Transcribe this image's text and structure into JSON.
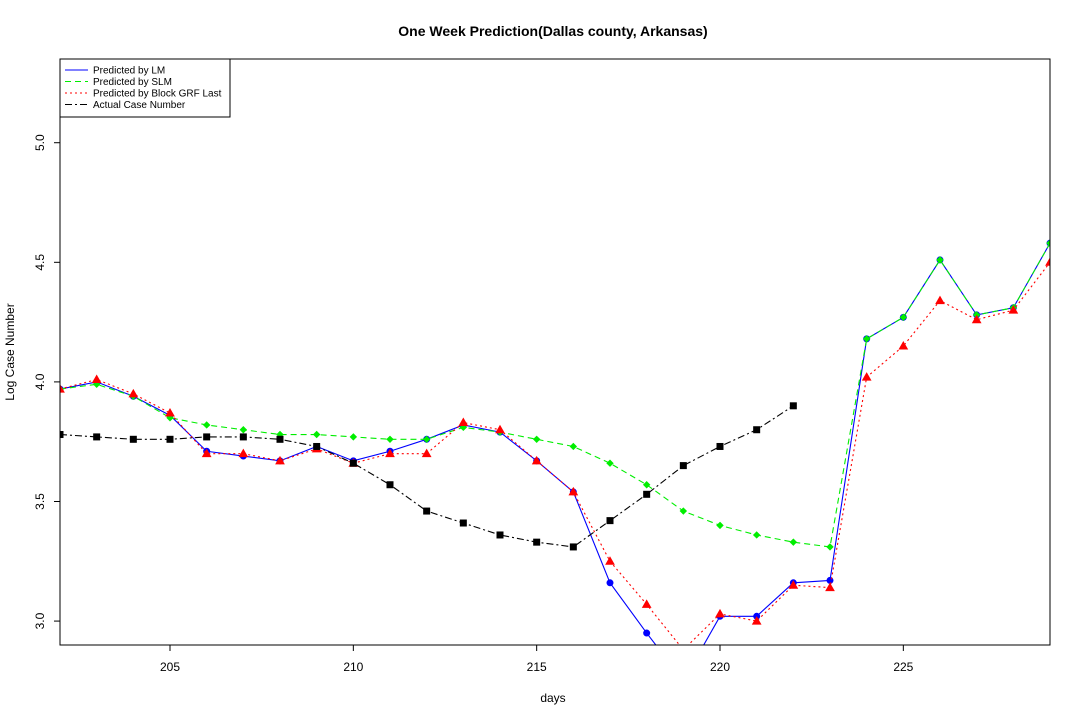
{
  "chart_data": {
    "type": "line",
    "title": "One Week Prediction(Dallas county, Arkansas)",
    "xlabel": "days",
    "ylabel": "Log Case Number",
    "xlim": [
      202,
      229
    ],
    "ylim": [
      2.9,
      5.35
    ],
    "xticks": [
      205,
      210,
      215,
      220,
      225
    ],
    "yticks": [
      3.0,
      3.5,
      4.0,
      4.5,
      5.0
    ],
    "legend_position": "top-left",
    "series": [
      {
        "name": "Predicted by LM",
        "color": "#0000ff",
        "linestyle": "solid",
        "marker": "circle",
        "x": [
          202,
          203,
          204,
          205,
          206,
          207,
          208,
          209,
          210,
          211,
          212,
          213,
          214,
          215,
          216,
          217,
          218,
          219,
          220,
          221,
          222,
          223,
          224,
          225,
          226,
          227,
          228,
          229
        ],
        "values": [
          3.97,
          4.0,
          3.94,
          3.86,
          3.71,
          3.69,
          3.67,
          3.73,
          3.67,
          3.71,
          3.76,
          3.82,
          3.79,
          3.67,
          3.54,
          3.16,
          2.95,
          2.75,
          3.02,
          3.02,
          3.16,
          3.17,
          4.18,
          4.27,
          4.51,
          4.28,
          4.31,
          4.58
        ]
      },
      {
        "name": "Predicted by SLM",
        "color": "#00ee00",
        "linestyle": "dashed",
        "marker": "diamond",
        "x": [
          202,
          203,
          204,
          205,
          206,
          207,
          208,
          209,
          210,
          211,
          212,
          213,
          214,
          215,
          216,
          217,
          218,
          219,
          220,
          221,
          222,
          223,
          224,
          225,
          226,
          227,
          228,
          229
        ],
        "values": [
          3.97,
          3.99,
          3.94,
          3.85,
          3.82,
          3.8,
          3.78,
          3.78,
          3.77,
          3.76,
          3.76,
          3.81,
          3.79,
          3.76,
          3.73,
          3.66,
          3.57,
          3.46,
          3.4,
          3.36,
          3.33,
          3.31,
          4.18,
          4.27,
          4.51,
          4.28,
          4.31,
          4.58
        ]
      },
      {
        "name": "Predicted by Block GRF Last",
        "color": "#ff0000",
        "linestyle": "dotted",
        "marker": "triangle",
        "x": [
          202,
          203,
          204,
          205,
          206,
          207,
          208,
          209,
          210,
          211,
          212,
          213,
          214,
          215,
          216,
          217,
          218,
          219,
          220,
          221,
          222,
          223,
          224,
          225,
          226,
          227,
          228,
          229
        ],
        "values": [
          3.97,
          4.01,
          3.95,
          3.87,
          3.7,
          3.7,
          3.67,
          3.72,
          3.66,
          3.7,
          3.7,
          3.83,
          3.8,
          3.67,
          3.54,
          3.25,
          3.07,
          2.88,
          3.03,
          3.0,
          3.15,
          3.14,
          4.02,
          4.15,
          4.34,
          4.26,
          4.3,
          4.5
        ]
      },
      {
        "name": "Actual Case Number",
        "color": "#000000",
        "linestyle": "dashdot",
        "marker": "square",
        "x": [
          202,
          203,
          204,
          205,
          206,
          207,
          208,
          209,
          210,
          211,
          212,
          213,
          214,
          215,
          216,
          217,
          218,
          219,
          220,
          221,
          222
        ],
        "values": [
          3.78,
          3.77,
          3.76,
          3.76,
          3.77,
          3.77,
          3.76,
          3.73,
          3.66,
          3.57,
          3.46,
          3.41,
          3.36,
          3.33,
          3.31,
          3.42,
          3.53,
          3.65,
          3.73,
          3.8,
          3.9
        ]
      }
    ]
  }
}
